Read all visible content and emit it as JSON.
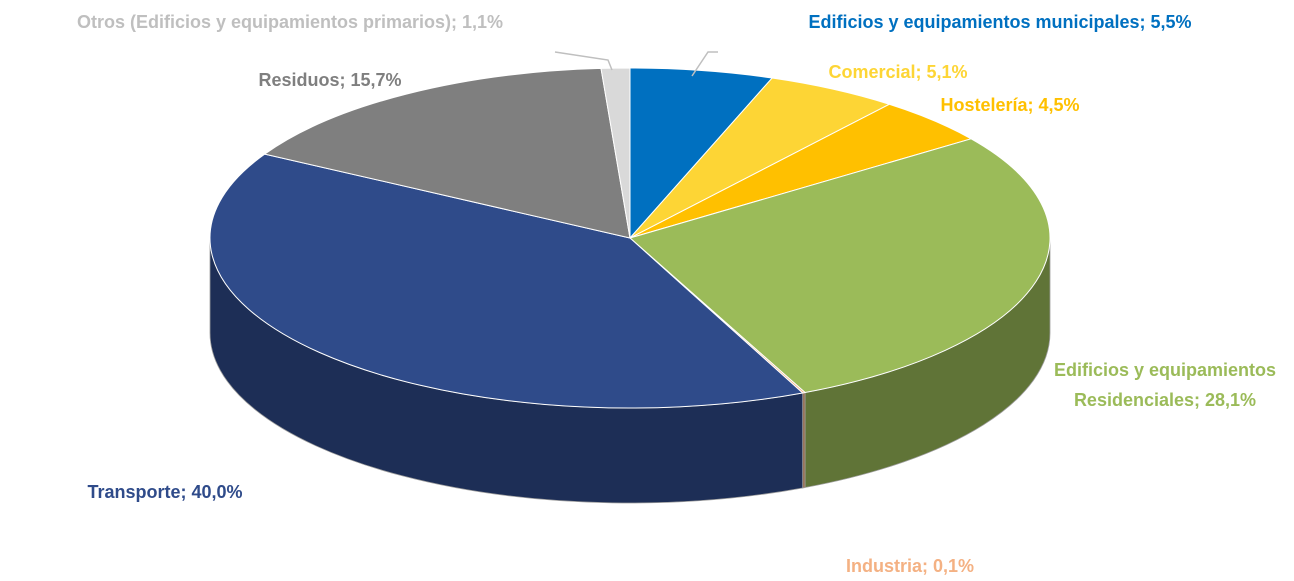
{
  "chart_data": {
    "type": "pie",
    "values": [
      5.5,
      5.1,
      4.5,
      28.1,
      0.1,
      40.0,
      15.7,
      1.1
    ],
    "value_labels": [
      "Edificios y equipamientos municipales; 5,5%",
      "Comercial; 5,1%",
      "Hostelería; 4,5%",
      "Edificios y equipamientos Residenciales; 28,1%",
      "Industria; 0,1%",
      "Transporte; 40,0%",
      "Residuos; 15,7%",
      "Otros (Edificios y equipamientos primarios); 1,1%"
    ],
    "colors": [
      "#0070c0",
      "#fdd535",
      "#ffc000",
      "#9bbb59",
      "#f4b183",
      "#2f4b8a",
      "#7f7f7f",
      "#d9d9d9"
    ],
    "label_colors": [
      "#0070c0",
      "#fdd535",
      "#ffc000",
      "#9bbb59",
      "#f4b183",
      "#2f4b8a",
      "#7f7f7f",
      "#bfbfbf"
    ]
  }
}
